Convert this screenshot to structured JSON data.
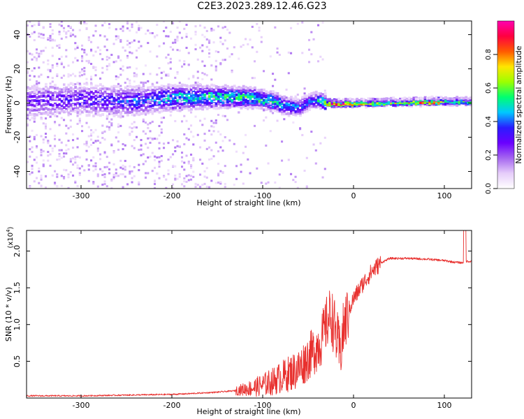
{
  "figure_title": "C2E3.2023.289.12.46.G23",
  "colors": {
    "snr_line": "#e8302e",
    "axis": "#000000",
    "background": "#ffffff",
    "colormap": [
      "#ffffff",
      "#e6cdfa",
      "#a566f0",
      "#6a00ff",
      "#2a1cff",
      "#00c8ff",
      "#00ff70",
      "#9cff00",
      "#ffe600",
      "#ff5a00",
      "#ff0040",
      "#ff00b0"
    ]
  },
  "chart_data": [
    {
      "type": "heatmap",
      "title": "",
      "xlabel": "Height of straight line (km)",
      "ylabel": "Frequency (Hz)",
      "xlim": [
        -360,
        130
      ],
      "ylim": [
        -50,
        48
      ],
      "x_ticks": [
        -300,
        -200,
        -100,
        0,
        100
      ],
      "x_tick_labels": [
        "-300",
        "-200",
        "-100",
        "0",
        "100"
      ],
      "y_ticks": [
        -40,
        -20,
        0,
        20,
        40
      ],
      "y_tick_labels": [
        "-40",
        "-20",
        "0",
        "20",
        "40"
      ],
      "colorbar": {
        "label": "Normalized spectral amplitude",
        "range": [
          0.0,
          1.0
        ],
        "ticks": [
          0.0,
          0.2,
          0.4,
          0.6,
          0.8
        ],
        "tick_labels": [
          "0.0",
          "0.2",
          "0.4",
          "0.6",
          "0.8"
        ]
      },
      "ridge": {
        "x": [
          -360,
          -300,
          -250,
          -200,
          -160,
          -130,
          -110,
          -90,
          -75,
          -60,
          -45,
          -35,
          -30,
          -20,
          0,
          40,
          80,
          110,
          130
        ],
        "freq": [
          1,
          2,
          1,
          3,
          3.5,
          3.5,
          3,
          1,
          -2,
          -2,
          2,
          1,
          0,
          0,
          0,
          0.5,
          1,
          1,
          1
        ],
        "amplitude": [
          0.25,
          0.3,
          0.35,
          0.45,
          0.5,
          0.5,
          0.52,
          0.5,
          0.45,
          0.35,
          0.4,
          0.6,
          0.8,
          0.85,
          0.7,
          0.6,
          0.85,
          0.55,
          0.5
        ]
      }
    },
    {
      "type": "line",
      "title": "",
      "xlabel": "Height of straight line (km)",
      "ylabel": "SNR (10 * v/v)",
      "y_scale_label": "(x10",
      "y_scale_exponent": "4",
      "y_scale_suffix": ")",
      "xlim": [
        -360,
        130
      ],
      "ylim": [
        0,
        2.28
      ],
      "x_ticks": [
        -300,
        -200,
        -100,
        0,
        100
      ],
      "x_tick_labels": [
        "-300",
        "-200",
        "-100",
        "0",
        "100"
      ],
      "y_ticks": [
        0.5,
        1.0,
        1.5,
        2.0
      ],
      "y_tick_labels": [
        "0.5",
        "1.0",
        "1.5",
        "2.0"
      ],
      "series": [
        {
          "x": [
            -360,
            -300,
            -250,
            -200,
            -180,
            -150,
            -130,
            -110,
            -100,
            -90,
            -80,
            -70,
            -60,
            -50,
            -40,
            -35,
            -30,
            -25,
            -20,
            -15,
            -10,
            -5,
            0,
            5,
            10,
            20,
            30,
            40,
            60,
            80,
            100,
            110,
            120,
            125,
            130
          ],
          "y": [
            0.03,
            0.03,
            0.04,
            0.05,
            0.06,
            0.08,
            0.1,
            0.14,
            0.18,
            0.22,
            0.28,
            0.34,
            0.4,
            0.55,
            0.7,
            0.8,
            1.0,
            1.15,
            0.9,
            0.6,
            1.0,
            1.2,
            1.35,
            1.45,
            1.55,
            1.72,
            1.84,
            1.9,
            1.9,
            1.89,
            1.87,
            1.85,
            1.84,
            1.86,
            1.86
          ]
        }
      ]
    }
  ]
}
